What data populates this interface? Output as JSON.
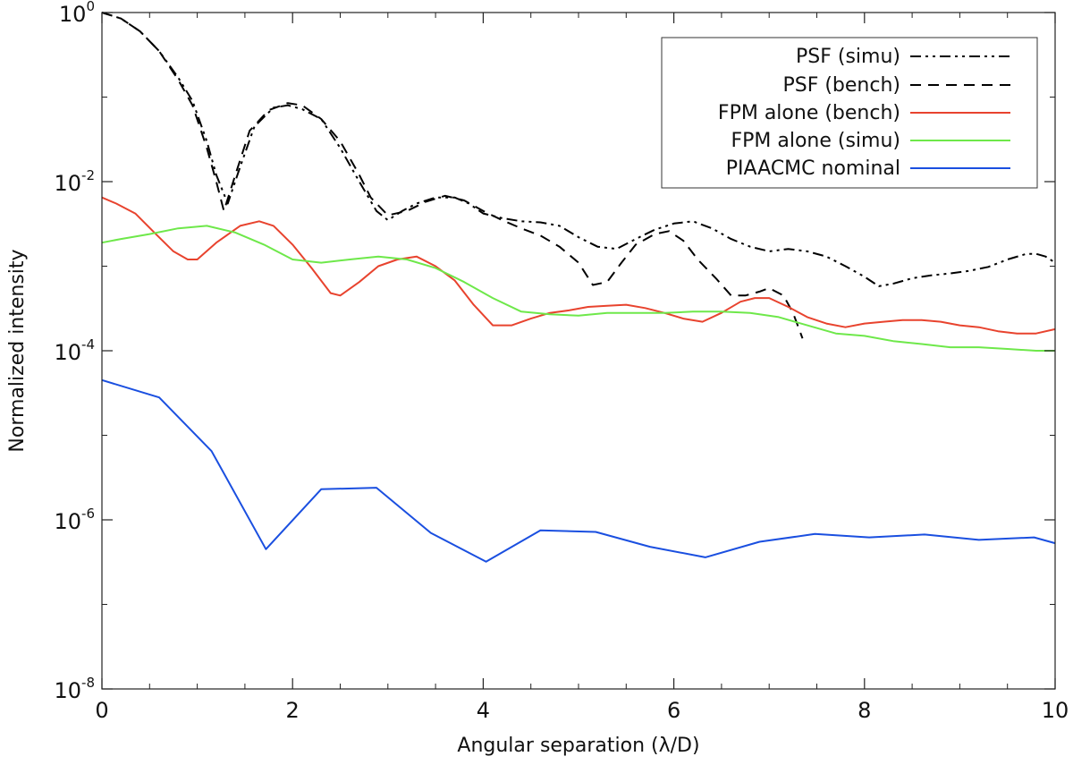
{
  "chart_data": {
    "type": "line",
    "title": "",
    "xlabel": "Angular separation (λ/D)",
    "ylabel": "Normalized intensity",
    "xlim": [
      0,
      10
    ],
    "ylim": [
      1e-08,
      1
    ],
    "yscale": "log",
    "legend_position": "top-right",
    "x_ticks": [
      {
        "value": 0,
        "label": "0"
      },
      {
        "value": 2,
        "label": "2"
      },
      {
        "value": 4,
        "label": "4"
      },
      {
        "value": 6,
        "label": "6"
      },
      {
        "value": 8,
        "label": "8"
      },
      {
        "value": 10,
        "label": "10"
      }
    ],
    "y_ticks": [
      {
        "value": 1,
        "base": "10",
        "exp": "0"
      },
      {
        "value": 0.01,
        "base": "10",
        "exp": "-2"
      },
      {
        "value": 0.0001,
        "base": "10",
        "exp": "-4"
      },
      {
        "value": 1e-06,
        "base": "10",
        "exp": "-6"
      },
      {
        "value": 1e-08,
        "base": "10",
        "exp": "-8"
      }
    ],
    "series": [
      {
        "name": "PSF (simu)",
        "color": "#000000",
        "dash": "dashdotdot",
        "x": [
          0,
          0.2,
          0.4,
          0.6,
          0.8,
          0.95,
          1.1,
          1.2,
          1.32,
          1.45,
          1.6,
          1.8,
          1.95,
          2.1,
          2.3,
          2.5,
          2.7,
          2.88,
          3.0,
          3.15,
          3.3,
          3.5,
          3.7,
          3.85,
          4.0,
          4.2,
          4.4,
          4.6,
          4.8,
          5.0,
          5.2,
          5.4,
          5.6,
          5.8,
          6.0,
          6.2,
          6.4,
          6.6,
          6.8,
          7.0,
          7.2,
          7.4,
          7.6,
          7.8,
          8.0,
          8.15,
          8.3,
          8.5,
          8.7,
          8.9,
          9.1,
          9.3,
          9.5,
          9.7,
          9.8,
          9.9,
          10.0
        ],
        "y": [
          1.0,
          0.85,
          0.6,
          0.35,
          0.17,
          0.09,
          0.03,
          0.012,
          0.0055,
          0.015,
          0.045,
          0.075,
          0.08,
          0.072,
          0.055,
          0.025,
          0.01,
          0.0045,
          0.0035,
          0.0045,
          0.0055,
          0.0065,
          0.0065,
          0.0055,
          0.0042,
          0.0037,
          0.0034,
          0.0033,
          0.003,
          0.0022,
          0.0017,
          0.0016,
          0.0021,
          0.0027,
          0.0032,
          0.0034,
          0.0028,
          0.0021,
          0.0017,
          0.0015,
          0.0016,
          0.0015,
          0.0013,
          0.001,
          0.00075,
          0.00058,
          0.00062,
          0.00072,
          0.00078,
          0.00082,
          0.00088,
          0.00098,
          0.0012,
          0.0014,
          0.0014,
          0.0013,
          0.0011
        ]
      },
      {
        "name": "PSF (bench)",
        "color": "#000000",
        "dash": "dashed",
        "x": [
          0,
          0.2,
          0.4,
          0.6,
          0.8,
          0.95,
          1.1,
          1.2,
          1.28,
          1.4,
          1.55,
          1.75,
          1.95,
          2.1,
          2.3,
          2.5,
          2.7,
          2.82,
          3.0,
          3.2,
          3.4,
          3.6,
          3.8,
          4.0,
          4.2,
          4.4,
          4.6,
          4.8,
          5.0,
          5.15,
          5.3,
          5.45,
          5.6,
          5.8,
          5.95,
          6.1,
          6.25,
          6.45,
          6.6,
          6.75,
          6.9,
          7.0,
          7.15,
          7.25,
          7.35
        ],
        "y": [
          1.0,
          0.85,
          0.6,
          0.35,
          0.16,
          0.08,
          0.025,
          0.01,
          0.0045,
          0.012,
          0.04,
          0.07,
          0.085,
          0.08,
          0.055,
          0.03,
          0.012,
          0.0065,
          0.004,
          0.0045,
          0.0058,
          0.0068,
          0.006,
          0.0045,
          0.0035,
          0.0028,
          0.0023,
          0.0017,
          0.0011,
          0.0006,
          0.00065,
          0.0011,
          0.0018,
          0.0024,
          0.0026,
          0.002,
          0.0012,
          0.0007,
          0.00045,
          0.00045,
          0.0005,
          0.00055,
          0.00045,
          0.00028,
          0.00014
        ]
      },
      {
        "name": "FPM alone (bench)",
        "color": "#e8432e",
        "dash": "solid",
        "x": [
          0,
          0.15,
          0.35,
          0.55,
          0.75,
          0.9,
          1.0,
          1.2,
          1.45,
          1.65,
          1.8,
          2.0,
          2.2,
          2.4,
          2.5,
          2.7,
          2.9,
          3.1,
          3.3,
          3.5,
          3.7,
          3.9,
          4.1,
          4.3,
          4.5,
          4.7,
          4.9,
          5.1,
          5.3,
          5.5,
          5.7,
          5.9,
          6.1,
          6.3,
          6.5,
          6.7,
          6.85,
          7.0,
          7.2,
          7.4,
          7.6,
          7.8,
          8.0,
          8.2,
          8.4,
          8.6,
          8.8,
          9.0,
          9.2,
          9.4,
          9.6,
          9.8,
          10.0
        ],
        "y": [
          0.0065,
          0.0055,
          0.0042,
          0.0025,
          0.0015,
          0.0012,
          0.0012,
          0.0019,
          0.003,
          0.0034,
          0.003,
          0.0018,
          0.00095,
          0.00048,
          0.00045,
          0.00065,
          0.001,
          0.0012,
          0.0013,
          0.001,
          0.00068,
          0.00035,
          0.0002,
          0.0002,
          0.00024,
          0.00028,
          0.0003,
          0.00033,
          0.00034,
          0.00035,
          0.00032,
          0.00028,
          0.00024,
          0.00022,
          0.00028,
          0.00038,
          0.00042,
          0.00042,
          0.00033,
          0.00025,
          0.00021,
          0.00019,
          0.00021,
          0.00022,
          0.00023,
          0.00023,
          0.00022,
          0.0002,
          0.00019,
          0.00017,
          0.00016,
          0.00016,
          0.00018
        ]
      },
      {
        "name": "FPM alone (simu)",
        "color": "#6ee84a",
        "dash": "solid",
        "x": [
          0,
          0.2,
          0.5,
          0.8,
          1.1,
          1.4,
          1.7,
          2.0,
          2.3,
          2.6,
          2.9,
          3.2,
          3.5,
          3.8,
          4.1,
          4.4,
          4.7,
          5.0,
          5.3,
          5.6,
          5.9,
          6.2,
          6.5,
          6.8,
          7.1,
          7.4,
          7.7,
          8.0,
          8.3,
          8.6,
          8.9,
          9.2,
          9.5,
          9.8,
          10.0
        ],
        "y": [
          0.0019,
          0.0021,
          0.0024,
          0.0028,
          0.003,
          0.0025,
          0.0018,
          0.0012,
          0.0011,
          0.0012,
          0.0013,
          0.0012,
          0.00095,
          0.00065,
          0.00042,
          0.00029,
          0.00027,
          0.00026,
          0.00028,
          0.00028,
          0.00028,
          0.00029,
          0.00029,
          0.00028,
          0.00025,
          0.0002,
          0.00016,
          0.00015,
          0.00013,
          0.00012,
          0.00011,
          0.00011,
          0.000105,
          0.0001,
          0.0001
        ]
      },
      {
        "name": "PIAACMC nominal",
        "color": "#1a4fe0",
        "dash": "solid",
        "x": [
          0,
          0.6,
          1.15,
          1.72,
          2.3,
          2.88,
          3.45,
          4.03,
          4.6,
          5.18,
          5.75,
          6.33,
          6.9,
          7.48,
          8.05,
          8.63,
          9.2,
          9.78,
          10.0
        ],
        "y": [
          4.5e-05,
          2.8e-05,
          6.5e-06,
          4.5e-07,
          2.3e-06,
          2.4e-06,
          7e-07,
          3.2e-07,
          7.5e-07,
          7.2e-07,
          4.8e-07,
          3.6e-07,
          5.5e-07,
          6.8e-07,
          6.2e-07,
          6.7e-07,
          5.8e-07,
          6.2e-07,
          5.3e-07
        ]
      }
    ]
  }
}
